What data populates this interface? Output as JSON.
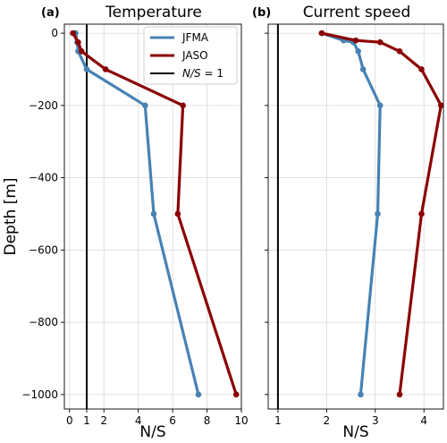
{
  "chart_data": [
    {
      "type": "line",
      "panel_label": "(a)",
      "title": "Temperature",
      "xlabel": "N/S",
      "ylabel": "Depth [m]",
      "xlim": [
        -0.3,
        10.0
      ],
      "ylim": [
        -1040,
        25
      ],
      "xticks": [
        0,
        1,
        2,
        4,
        6,
        8,
        10
      ],
      "xtick_labels": [
        "0",
        "1",
        "2",
        "4",
        "6",
        "8",
        "10"
      ],
      "yticks": [
        0,
        -200,
        -400,
        -600,
        -800,
        -1000
      ],
      "ytick_labels": [
        "0",
        "−200",
        "−400",
        "−600",
        "−800",
        "−1000"
      ],
      "grid": true,
      "reference_line": {
        "x": 1,
        "label": "N/S = 1",
        "color": "#000000"
      },
      "legend": {
        "position": "top-right",
        "entries": [
          {
            "label": "JFMA",
            "color": "#4682b4"
          },
          {
            "label": "JASO",
            "color": "#8b0000"
          },
          {
            "label_main": "N/S",
            "label_rest": " = 1",
            "color": "#000000"
          }
        ]
      },
      "series": [
        {
          "name": "JFMA",
          "color": "#4682b4",
          "x": [
            0.35,
            0.45,
            0.5,
            1.0,
            4.4,
            4.9,
            7.5
          ],
          "y": [
            0,
            -25,
            -50,
            -100,
            -200,
            -500,
            -1000
          ]
        },
        {
          "name": "JASO",
          "color": "#8b0000",
          "x": [
            0.2,
            0.5,
            0.7,
            2.1,
            6.6,
            6.3,
            9.7
          ],
          "y": [
            0,
            -25,
            -50,
            -100,
            -200,
            -500,
            -1000
          ]
        }
      ]
    },
    {
      "type": "line",
      "panel_label": "(b)",
      "title": "Current speed",
      "xlabel": "N/S",
      "xlim": [
        0.8,
        4.4
      ],
      "ylim": [
        -1040,
        25
      ],
      "xticks": [
        1,
        2,
        3,
        4
      ],
      "xtick_labels": [
        "1",
        "2",
        "3",
        "4"
      ],
      "yticks": [
        0,
        -200,
        -400,
        -600,
        -800,
        -1000
      ],
      "grid": true,
      "reference_line": {
        "x": 1,
        "color": "#000000"
      },
      "series": [
        {
          "name": "JFMA",
          "color": "#4682b4",
          "x": [
            1.9,
            2.35,
            2.55,
            2.65,
            2.75,
            3.1,
            3.05,
            2.7
          ],
          "y": [
            0,
            -20,
            -25,
            -50,
            -100,
            -200,
            -500,
            -1000
          ]
        },
        {
          "name": "JASO",
          "color": "#8b0000",
          "x": [
            1.9,
            2.6,
            3.1,
            3.5,
            3.95,
            4.35,
            3.95,
            3.5
          ],
          "y": [
            0,
            -20,
            -25,
            -50,
            -100,
            -200,
            -500,
            -1000
          ]
        }
      ]
    }
  ]
}
